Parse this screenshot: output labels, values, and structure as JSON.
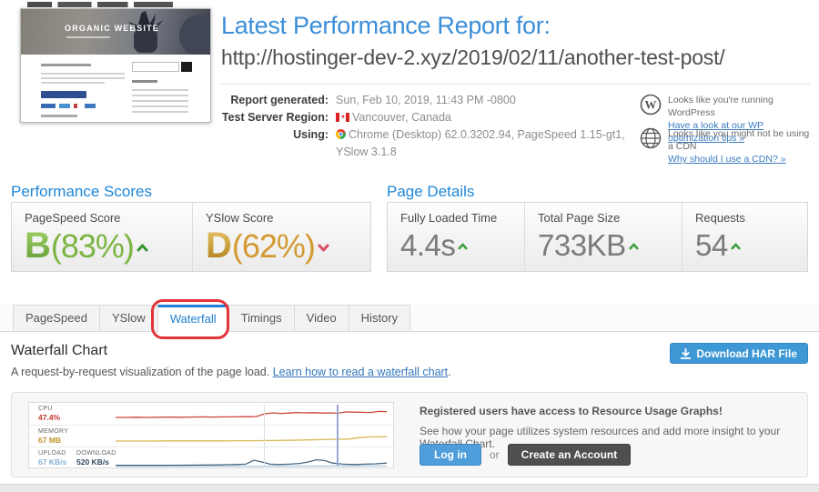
{
  "header": {
    "title": "Latest Performance Report for:",
    "url": "http://hostinger-dev-2.xyz/2019/02/11/another-test-post/",
    "thumbnail_site_title": "ORGANIC WEBSITE",
    "meta": [
      {
        "label": "Report generated:",
        "value": "Sun, Feb 10, 2019, 11:43 PM -0800"
      },
      {
        "label": "Test Server Region:",
        "value": "Vancouver, Canada",
        "icon": "canada-flag"
      },
      {
        "label": "Using:",
        "value": "Chrome (Desktop) 62.0.3202.94, PageSpeed 1.15-gt1, YSlow 3.1.8",
        "icon": "chrome"
      }
    ],
    "notices": [
      {
        "icon": "wordpress-icon",
        "text": "Looks like you're running WordPress",
        "link": "Have a look at our WP optimization tips »"
      },
      {
        "icon": "globe-icon",
        "text": "Looks like you might not be using a CDN",
        "link": "Why should I use a CDN? »"
      }
    ]
  },
  "scores": {
    "heading": "Performance Scores",
    "items": [
      {
        "label": "PageSpeed Score",
        "grade": "B",
        "percent": "(83%)",
        "trend": "up",
        "color": "#7cb442"
      },
      {
        "label": "YSlow Score",
        "grade": "D",
        "percent": "(62%)",
        "trend": "down",
        "color": "#d29a30"
      }
    ]
  },
  "page_details": {
    "heading": "Page Details",
    "items": [
      {
        "label": "Fully Loaded Time",
        "value": "4.4s",
        "trend": "up"
      },
      {
        "label": "Total Page Size",
        "value": "733KB",
        "trend": "up"
      },
      {
        "label": "Requests",
        "value": "54",
        "trend": "up"
      }
    ]
  },
  "tabs": {
    "items": [
      {
        "label": "PageSpeed"
      },
      {
        "label": "YSlow"
      },
      {
        "label": "Waterfall",
        "active": true
      },
      {
        "label": "Timings"
      },
      {
        "label": "Video"
      },
      {
        "label": "History"
      }
    ],
    "active": "Waterfall",
    "annotation_color": "#e23438"
  },
  "waterfall": {
    "heading": "Waterfall Chart",
    "description": "A request-by-request visualization of the page load. ",
    "link": "Learn how to read a waterfall chart",
    "suffix": ".",
    "download_button": "Download HAR File",
    "download_button_color": "#3e98d6"
  },
  "resource_panel": {
    "headline": "Registered users have access to Resource Usage Graphs!",
    "body": "See how your page utilizes system resources and add more insight to your Waterfall Chart.",
    "login_button": "Log in",
    "or_text": "or",
    "create_button": "Create an Account"
  },
  "chart_data": [
    {
      "type": "line",
      "title": "CPU",
      "current": "47.4%",
      "color": "#c9453c",
      "value_color": "#c4372e",
      "x": [
        0,
        4,
        8,
        12,
        16,
        20,
        24,
        28,
        32,
        36,
        40,
        44,
        47,
        50,
        52,
        55,
        58,
        61,
        64,
        67,
        70,
        73,
        76,
        79,
        82,
        85,
        88,
        91,
        94,
        97,
        100
      ],
      "values": [
        30,
        30,
        31,
        30,
        31,
        32,
        31,
        32,
        33,
        32,
        33,
        33,
        34,
        34,
        35,
        50,
        55,
        52,
        54,
        57,
        55,
        56,
        54,
        55,
        53,
        60,
        59,
        58,
        57,
        63,
        62
      ]
    },
    {
      "type": "line",
      "title": "MEMORY",
      "current": "67 MB",
      "color": "#d9b954",
      "value_color": "#c1962e",
      "x": [
        0,
        10,
        20,
        30,
        40,
        50,
        58,
        64,
        70,
        76,
        82,
        86,
        90,
        94,
        100
      ],
      "values": [
        25,
        25,
        26,
        26,
        26,
        27,
        28,
        29,
        31,
        33,
        35,
        36,
        44,
        48,
        49
      ]
    },
    {
      "type": "line",
      "title": "DOWNLOAD",
      "current": "520 KB/s",
      "color": "#49677f",
      "value_color": "#32495e",
      "x": [
        0,
        10,
        20,
        30,
        38,
        44,
        48,
        51,
        54,
        57,
        60,
        64,
        68,
        71,
        74,
        77,
        80,
        84,
        88,
        92,
        96,
        100
      ],
      "values": [
        12,
        12,
        12,
        13,
        14,
        16,
        18,
        40,
        30,
        18,
        16,
        18,
        22,
        30,
        42,
        38,
        24,
        18,
        16,
        18,
        20,
        24
      ]
    },
    {
      "type": "line",
      "title": "UPLOAD",
      "current": "67 KB/s",
      "color": "#a9cce5",
      "value_color": "#85b2da",
      "x": [
        0,
        50,
        100
      ],
      "values": [
        7,
        7,
        8
      ]
    }
  ]
}
